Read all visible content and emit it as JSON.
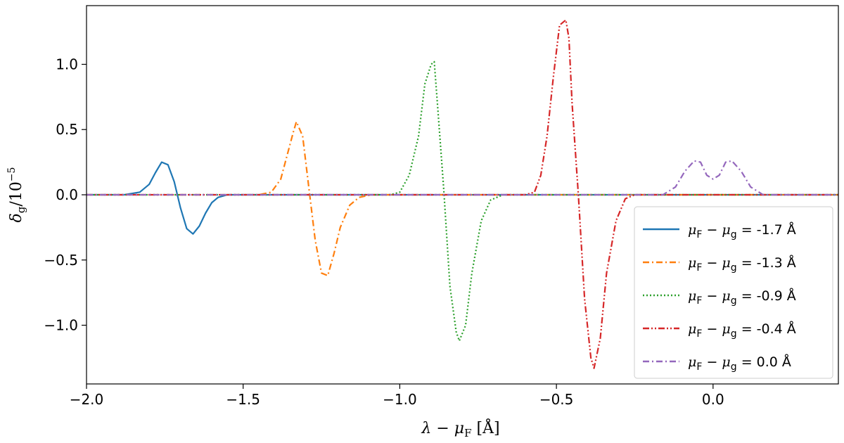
{
  "chart_data": {
    "type": "line",
    "xlabel": "λ − μ_F [Å]",
    "ylabel": "δ_g/10^−5",
    "xlim": [
      -2.0,
      0.4
    ],
    "ylim": [
      -1.45,
      1.45
    ],
    "x_ticks": [
      -2.0,
      -1.5,
      -1.0,
      -0.5,
      0.0
    ],
    "x_tick_labels": [
      "−2.0",
      "−1.5",
      "−1.0",
      "−0.5",
      "0.0"
    ],
    "y_ticks": [
      -1.0,
      -0.5,
      0.0,
      0.5,
      1.0
    ],
    "y_tick_labels": [
      "−1.0",
      "−0.5",
      "0.0",
      "0.5",
      "1.0"
    ],
    "grid": false,
    "legend_position": "bottom-right",
    "series": [
      {
        "name": "μF − μg = -1.7 Å",
        "label_value": "-1.7 Å",
        "color": "#1f77b4",
        "dash": "solid",
        "x": [
          -1.88,
          -1.83,
          -1.8,
          -1.78,
          -1.76,
          -1.74,
          -1.72,
          -1.7,
          -1.68,
          -1.66,
          -1.64,
          -1.62,
          -1.6,
          -1.58,
          -1.55,
          -1.52
        ],
        "y": [
          0.0,
          0.02,
          0.08,
          0.17,
          0.25,
          0.23,
          0.1,
          -0.1,
          -0.26,
          -0.3,
          -0.24,
          -0.14,
          -0.06,
          -0.02,
          0.0,
          0.0
        ]
      },
      {
        "name": "μF − μg = -1.3 Å",
        "label_value": "-1.3 Å",
        "color": "#ff7f0e",
        "dash": "dashdot",
        "x": [
          -1.45,
          -1.41,
          -1.38,
          -1.36,
          -1.34,
          -1.33,
          -1.31,
          -1.29,
          -1.27,
          -1.25,
          -1.23,
          -1.21,
          -1.19,
          -1.16,
          -1.13,
          -1.09
        ],
        "y": [
          0.0,
          0.02,
          0.12,
          0.3,
          0.48,
          0.56,
          0.45,
          0.05,
          -0.35,
          -0.6,
          -0.62,
          -0.45,
          -0.25,
          -0.08,
          -0.02,
          0.0
        ]
      },
      {
        "name": "μF − μg = -0.9 Å",
        "label_value": "-0.9 Å",
        "color": "#2ca02c",
        "dash": "dotted",
        "x": [
          -1.03,
          -1.0,
          -0.97,
          -0.94,
          -0.92,
          -0.9,
          -0.89,
          -0.88,
          -0.86,
          -0.84,
          -0.82,
          -0.81,
          -0.79,
          -0.77,
          -0.74,
          -0.71,
          -0.67
        ],
        "y": [
          0.0,
          0.02,
          0.15,
          0.45,
          0.85,
          1.0,
          1.02,
          0.7,
          0.05,
          -0.7,
          -1.05,
          -1.12,
          -1.0,
          -0.6,
          -0.2,
          -0.04,
          0.0
        ]
      },
      {
        "name": "μF − μg = -0.4 Å",
        "label_value": "-0.4 Å",
        "color": "#d62728",
        "dash": "dashdotdot",
        "x": [
          -0.6,
          -0.57,
          -0.55,
          -0.53,
          -0.51,
          -0.49,
          -0.47,
          -0.46,
          -0.45,
          -0.43,
          -0.41,
          -0.39,
          -0.38,
          -0.36,
          -0.34,
          -0.31,
          -0.28,
          -0.25
        ],
        "y": [
          0.0,
          0.02,
          0.15,
          0.45,
          0.9,
          1.3,
          1.34,
          1.2,
          0.7,
          0.0,
          -0.8,
          -1.25,
          -1.33,
          -1.1,
          -0.6,
          -0.2,
          -0.03,
          0.0
        ]
      },
      {
        "name": "μF − μg = 0.0 Å",
        "label_value": "0.0 Å",
        "color": "#9467bd",
        "dash": "dashdot",
        "x": [
          -0.16,
          -0.12,
          -0.09,
          -0.06,
          -0.04,
          -0.02,
          0.0,
          0.02,
          0.04,
          0.06,
          0.09,
          0.12,
          0.16
        ],
        "y": [
          0.0,
          0.06,
          0.18,
          0.26,
          0.25,
          0.15,
          0.12,
          0.15,
          0.25,
          0.26,
          0.18,
          0.06,
          0.0
        ]
      }
    ]
  },
  "legend_label_prefix": {
    "mu": "μ",
    "sub_F": "F",
    "sub_g": "g",
    "minus": " − ",
    "equals": " = "
  },
  "axis_text": {
    "x_lambda": "λ",
    "x_minus": " − μ",
    "x_sub": "F",
    "x_unit": " [Å]",
    "y_delta": "δ",
    "y_sub": "g",
    "y_rest": "/10",
    "y_sup": "−5"
  }
}
